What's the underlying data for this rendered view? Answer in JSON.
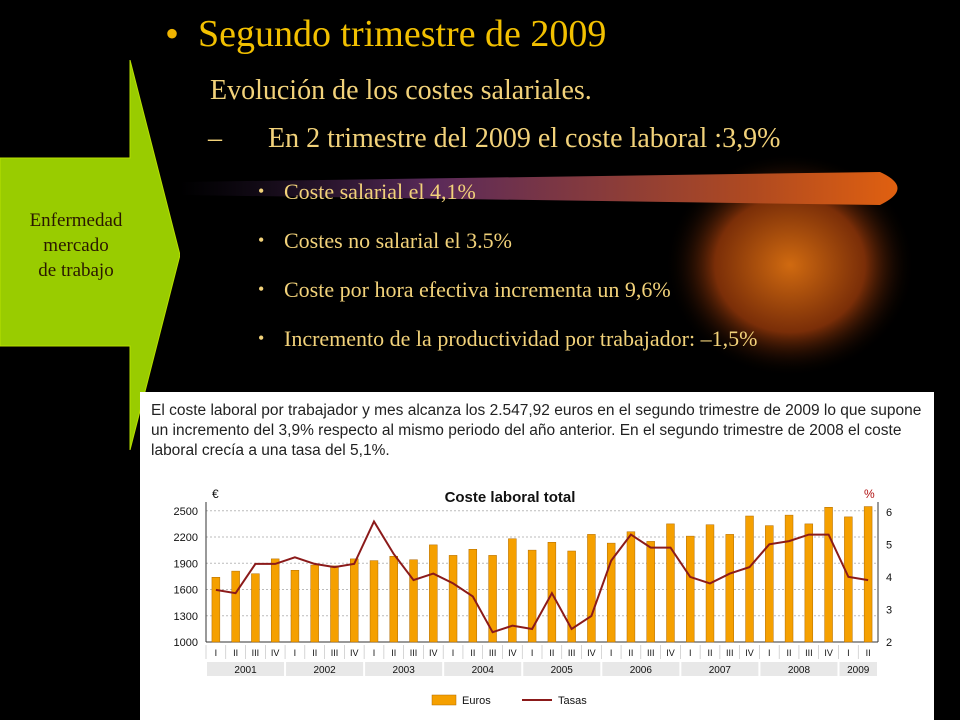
{
  "slide": {
    "title_bullet": "•",
    "title": "Segundo trimestre de 2009",
    "subtitle": "Evolución de los costes salariales.",
    "dash": "–",
    "subtitle2": "En 2 trimestre del 2009 el coste laboral :3,9%",
    "bullets": [
      "Coste salarial el 4,1%",
      "Costes no salarial el 3.5%",
      "Coste por hora efectiva incrementa un 9,6%",
      "Incremento de la productividad por trabajador: –1,5%"
    ],
    "bullet_char": "•",
    "arrow_label": [
      "Enfermedad",
      "mercado",
      "de trabajo"
    ],
    "colors": {
      "arrow": "#99cc00",
      "title": "#f2c000",
      "text": "#f2d27a"
    }
  },
  "panel": {
    "text": "El coste laboral por trabajador y mes alcanza los 2.547,92 euros en el segundo trimestre de 2009 lo que supone un incremento del 3,9% respecto al mismo periodo del año anterior. En el segundo trimestre de 2008 el coste laboral crecía a una tasa del  5,1%."
  },
  "chart_data": {
    "type": "bar",
    "title": "Coste laboral total",
    "left_unit": "€",
    "right_unit": "%",
    "ylim": [
      1000,
      2600
    ],
    "yticks": [
      "2500",
      "2200",
      "1900",
      "1600",
      "1300",
      "1000"
    ],
    "ylim_right": [
      2,
      6.3
    ],
    "yticks_right": [
      "6",
      "5",
      "4",
      "3",
      "2"
    ],
    "quarters": [
      "I",
      "II",
      "III",
      "IV",
      "I",
      "II",
      "III",
      "IV",
      "I",
      "II",
      "III",
      "IV",
      "I",
      "II",
      "III",
      "IV",
      "I",
      "II",
      "III",
      "IV",
      "I",
      "II",
      "III",
      "IV",
      "I",
      "II",
      "III",
      "IV",
      "I",
      "II",
      "III",
      "IV",
      "I",
      "II"
    ],
    "years": [
      "2001",
      "2002",
      "2003",
      "2004",
      "2005",
      "2006",
      "2007",
      "2008",
      "2009"
    ],
    "series": [
      {
        "name": "Euros",
        "type": "bar",
        "color": "#f5a000",
        "values": [
          1740,
          1810,
          1780,
          1950,
          1820,
          1880,
          1870,
          1950,
          1930,
          1980,
          1940,
          2110,
          1990,
          2060,
          1990,
          2180,
          2050,
          2140,
          2040,
          2230,
          2130,
          2260,
          2150,
          2350,
          2210,
          2340,
          2230,
          2440,
          2330,
          2450,
          2350,
          2540,
          2430,
          2548
        ]
      },
      {
        "name": "Tasas",
        "type": "line",
        "color": "#8b1a1a",
        "values": [
          3.6,
          3.5,
          4.4,
          4.4,
          4.6,
          4.4,
          4.3,
          4.4,
          5.7,
          4.7,
          3.9,
          4.1,
          3.8,
          3.4,
          2.3,
          2.5,
          2.4,
          3.5,
          2.4,
          2.8,
          4.5,
          5.3,
          4.9,
          4.9,
          4.0,
          3.8,
          4.1,
          4.3,
          5.0,
          5.1,
          5.3,
          5.3,
          4.0,
          3.9
        ]
      }
    ],
    "legend": [
      "Euros",
      "Tasas"
    ]
  }
}
